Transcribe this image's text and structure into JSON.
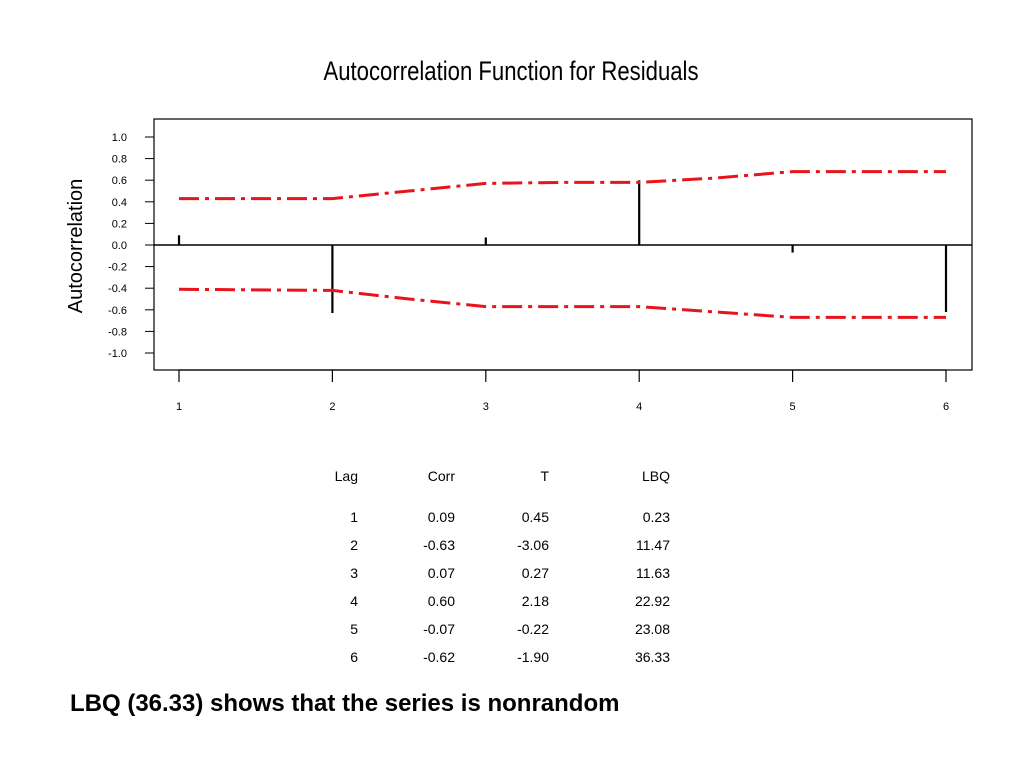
{
  "chart_data": {
    "type": "bar",
    "title": "Autocorrelation Function for Residuals",
    "xlabel": "",
    "ylabel": "Autocorrelation",
    "x": [
      1,
      2,
      3,
      4,
      5,
      6
    ],
    "values": [
      0.09,
      -0.63,
      0.07,
      0.6,
      -0.07,
      -0.62
    ],
    "ylim": [
      -1.0,
      1.0
    ],
    "xlim": [
      1,
      6
    ],
    "y_ticks": [
      "1.0",
      "0.8",
      "0.6",
      "0.4",
      "0.2",
      "0.0",
      "-0.2",
      "-0.4",
      "-0.6",
      "-0.8",
      "-1.0"
    ],
    "x_ticks": [
      "1",
      "2",
      "3",
      "4",
      "5",
      "6"
    ],
    "confidence_limits": {
      "x": [
        1,
        2,
        2.5,
        3,
        3.5,
        4,
        4.5,
        5,
        5.5,
        6
      ],
      "upper": [
        0.43,
        0.43,
        0.5,
        0.57,
        0.58,
        0.58,
        0.62,
        0.68,
        0.68,
        0.68
      ],
      "lower": [
        -0.41,
        -0.42,
        -0.5,
        -0.57,
        -0.57,
        -0.57,
        -0.62,
        -0.67,
        -0.67,
        -0.67
      ],
      "color": "#e8141c"
    },
    "grid": false,
    "table": {
      "headers": [
        "Lag",
        "Corr",
        "T",
        "LBQ"
      ],
      "rows": [
        [
          "1",
          "0.09",
          "0.45",
          "0.23"
        ],
        [
          "2",
          "-0.63",
          "-3.06",
          "11.47"
        ],
        [
          "3",
          "0.07",
          "0.27",
          "11.63"
        ],
        [
          "4",
          "0.60",
          "2.18",
          "22.92"
        ],
        [
          "5",
          "-0.07",
          "-0.22",
          "23.08"
        ],
        [
          "6",
          "-0.62",
          "-1.90",
          "36.33"
        ]
      ]
    }
  },
  "caption": "LBQ (36.33) shows that the series is nonrandom"
}
